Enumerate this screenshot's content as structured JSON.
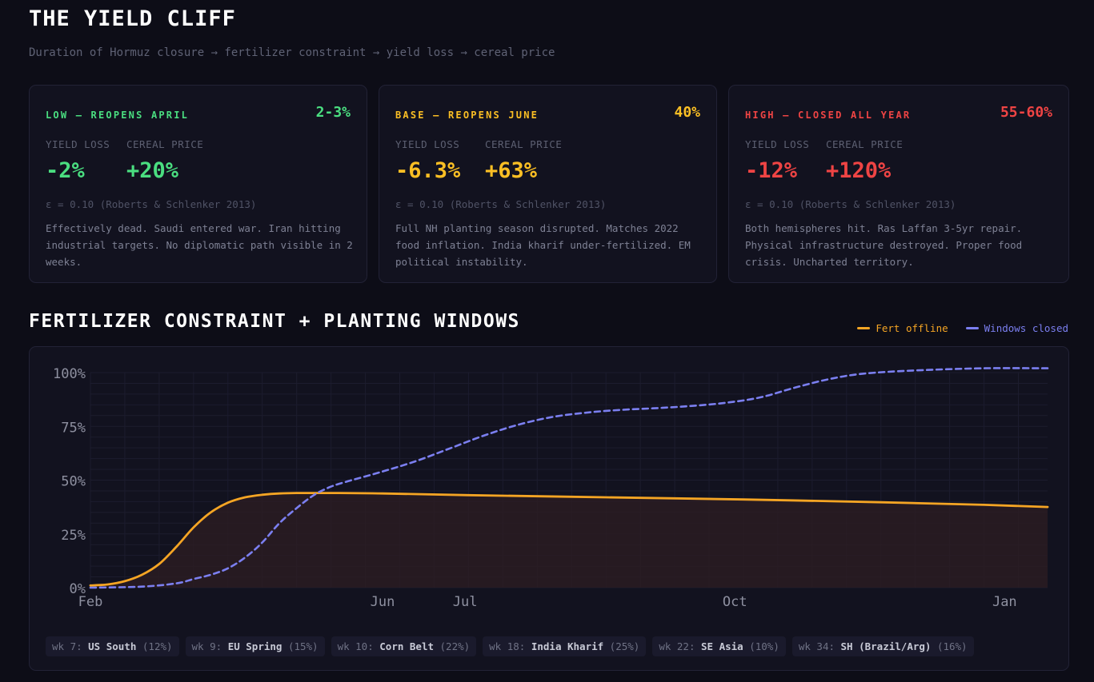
{
  "page": {
    "title": "THE YIELD CLIFF",
    "subtitle": "Duration of Hormuz closure → fertilizer constraint → yield loss → cereal price"
  },
  "scenarios": [
    {
      "label": "LOW — REOPENS APRIL",
      "pct": "2-3%",
      "color": "#4ade80",
      "yield_header": "YIELD LOSS",
      "price_header": "CEREAL PRICE",
      "yield_loss": "-2%",
      "cereal_price": "+20%",
      "elasticity": "ε = 0.10 (Roberts & Schlenker 2013)",
      "description": "Effectively dead. Saudi entered war. Iran hitting industrial targets. No diplomatic path visible in 2 weeks."
    },
    {
      "label": "BASE — REOPENS JUNE",
      "pct": "40%",
      "color": "#fbbf24",
      "yield_header": "YIELD LOSS",
      "price_header": "CEREAL PRICE",
      "yield_loss": "-6.3%",
      "cereal_price": "+63%",
      "elasticity": "ε = 0.10 (Roberts & Schlenker 2013)",
      "description": "Full NH planting season disrupted. Matches 2022 food inflation. India kharif under-fertilized. EM political instability."
    },
    {
      "label": "HIGH — CLOSED ALL YEAR",
      "pct": "55-60%",
      "color": "#ef4444",
      "yield_header": "YIELD LOSS",
      "price_header": "CEREAL PRICE",
      "yield_loss": "-12%",
      "cereal_price": "+120%",
      "elasticity": "ε = 0.10 (Roberts & Schlenker 2013)",
      "description": "Both hemispheres hit. Ras Laffan 3-5yr repair. Physical infrastructure destroyed. Proper food crisis. Uncharted territory."
    }
  ],
  "section": {
    "title": "FERTILIZER CONSTRAINT + PLANTING WINDOWS"
  },
  "legend": [
    {
      "label": "Fert offline",
      "color": "#f5a524",
      "icon": "solid-line-swatch"
    },
    {
      "label": "Windows closed",
      "color": "#7b7ff0",
      "icon": "dashed-line-swatch"
    }
  ],
  "chart_data": {
    "type": "line",
    "x_unit": "weeks",
    "x_range": [
      0,
      52
    ],
    "ylim": [
      0,
      100
    ],
    "y_ticks": [
      0,
      25,
      50,
      75,
      100
    ],
    "y_tick_labels": [
      "0%",
      "25%",
      "50%",
      "75%",
      "100%"
    ],
    "x_ticks": [
      {
        "label": "Feb",
        "x": 0
      },
      {
        "label": "Jun",
        "x": 17
      },
      {
        "label": "Jul",
        "x": 21.8
      },
      {
        "label": "Oct",
        "x": 37.5
      },
      {
        "label": "Jan",
        "x": 53.2
      }
    ],
    "grid": true,
    "legend_position": "top-right",
    "series": [
      {
        "name": "Fert offline",
        "color": "#f5a524",
        "style": "solid",
        "fill": true,
        "points": [
          [
            0,
            1
          ],
          [
            1,
            1.5
          ],
          [
            2,
            3
          ],
          [
            3,
            6
          ],
          [
            4,
            11
          ],
          [
            5,
            19
          ],
          [
            6,
            28
          ],
          [
            7,
            35
          ],
          [
            8,
            39.5
          ],
          [
            9,
            42
          ],
          [
            10,
            43.2
          ],
          [
            11,
            43.8
          ],
          [
            12,
            44
          ],
          [
            14,
            44
          ],
          [
            17,
            43.8
          ],
          [
            22,
            43
          ],
          [
            30,
            42
          ],
          [
            38,
            41
          ],
          [
            46,
            39.7
          ],
          [
            52,
            38.5
          ],
          [
            56,
            37.5
          ]
        ]
      },
      {
        "name": "Windows closed",
        "color": "#7b7ff0",
        "style": "dashed",
        "fill": false,
        "points": [
          [
            0,
            0
          ],
          [
            3,
            0.5
          ],
          [
            5,
            2
          ],
          [
            6,
            4
          ],
          [
            7,
            6
          ],
          [
            8,
            9
          ],
          [
            9,
            14
          ],
          [
            10,
            21
          ],
          [
            11,
            30
          ],
          [
            12,
            37
          ],
          [
            13,
            43
          ],
          [
            14,
            47
          ],
          [
            15,
            49.5
          ],
          [
            17,
            54
          ],
          [
            19,
            59
          ],
          [
            21,
            65
          ],
          [
            23,
            71
          ],
          [
            25,
            76
          ],
          [
            27,
            79.5
          ],
          [
            29,
            81.5
          ],
          [
            31,
            82.7
          ],
          [
            33,
            83.5
          ],
          [
            35,
            84.5
          ],
          [
            37,
            86
          ],
          [
            39,
            88.5
          ],
          [
            41,
            93
          ],
          [
            43,
            97
          ],
          [
            45,
            99.5
          ],
          [
            48,
            101
          ],
          [
            52,
            102
          ],
          [
            56,
            102
          ]
        ]
      }
    ],
    "annotations": [
      {
        "week": "wk 7:",
        "region": "US South",
        "share": "(12%)"
      },
      {
        "week": "wk 9:",
        "region": "EU Spring",
        "share": "(15%)"
      },
      {
        "week": "wk 10:",
        "region": "Corn Belt",
        "share": "(22%)"
      },
      {
        "week": "wk 18:",
        "region": "India Kharif",
        "share": "(25%)"
      },
      {
        "week": "wk 22:",
        "region": "SE Asia",
        "share": "(10%)"
      },
      {
        "week": "wk 34:",
        "region": "SH (Brazil/Arg)",
        "share": "(16%)"
      }
    ]
  }
}
